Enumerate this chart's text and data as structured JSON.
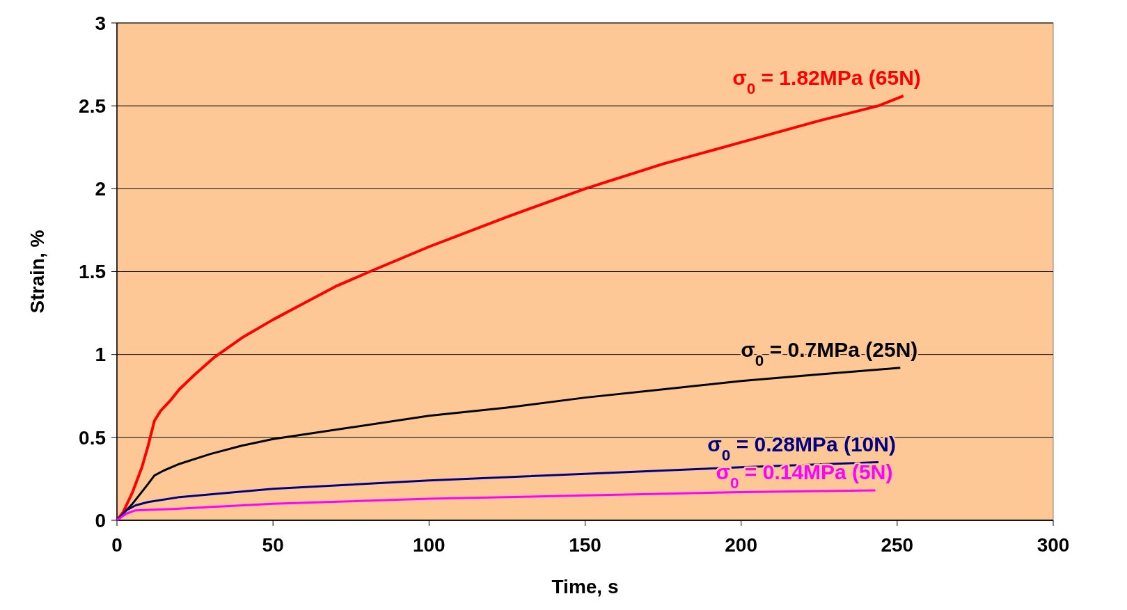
{
  "chart_data": {
    "type": "line",
    "xlabel": "Time, s",
    "ylabel": "Strain, %",
    "xlim": [
      0,
      300
    ],
    "ylim": [
      0,
      3
    ],
    "xticks": [
      0,
      50,
      100,
      150,
      200,
      250,
      300
    ],
    "yticks": [
      0,
      0.5,
      1,
      1.5,
      2,
      2.5,
      3
    ],
    "grid": "y",
    "marker": "none",
    "line_style": "solid",
    "series": [
      {
        "name": "σ$_{0}$ = 1.82MPa (65N)",
        "color": "#ff0000",
        "x": [
          0,
          2,
          5,
          8,
          10,
          12,
          14,
          17,
          20,
          25,
          31,
          40,
          50,
          60,
          70,
          81,
          100,
          125,
          150,
          175,
          200,
          225,
          244,
          252
        ],
        "values": [
          0,
          0.05,
          0.17,
          0.32,
          0.45,
          0.6,
          0.66,
          0.72,
          0.79,
          0.88,
          0.98,
          1.1,
          1.21,
          1.31,
          1.41,
          1.5,
          1.65,
          1.83,
          2.0,
          2.15,
          2.28,
          2.41,
          2.5,
          2.56
        ]
      },
      {
        "name": "σ$_{0}$ = 0.7MPa (25N)",
        "color": "#000000",
        "x": [
          0,
          5,
          10,
          12,
          15,
          20,
          30,
          40,
          50,
          75,
          100,
          125,
          150,
          175,
          200,
          225,
          251
        ],
        "values": [
          0,
          0.1,
          0.22,
          0.27,
          0.3,
          0.34,
          0.4,
          0.45,
          0.49,
          0.56,
          0.63,
          0.68,
          0.74,
          0.79,
          0.84,
          0.88,
          0.92
        ]
      },
      {
        "name": "σ$_{0}$ = 0.28MPa (10N)",
        "color": "#000080",
        "x": [
          0,
          3,
          6,
          10,
          20,
          50,
          100,
          150,
          200,
          244
        ],
        "values": [
          0,
          0.06,
          0.09,
          0.11,
          0.14,
          0.19,
          0.24,
          0.28,
          0.32,
          0.35
        ]
      },
      {
        "name": "σ$_{0}$ = 0.14MPa (5N)",
        "color": "#ff00ff",
        "x": [
          0,
          3,
          6,
          20,
          50,
          100,
          150,
          200,
          243
        ],
        "values": [
          0,
          0.04,
          0.06,
          0.07,
          0.1,
          0.13,
          0.15,
          0.17,
          0.18
        ]
      }
    ]
  }
}
